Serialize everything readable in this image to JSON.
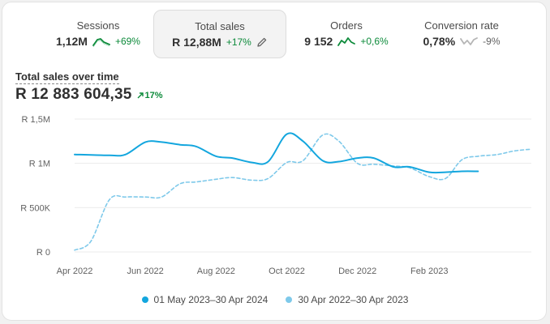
{
  "metrics": [
    {
      "label": "Sessions",
      "value": "1,12M",
      "change": "+69%",
      "trend": "up",
      "active": false
    },
    {
      "label": "Total sales",
      "value": "R 12,88M",
      "change": "+17%",
      "trend": "up",
      "active": true
    },
    {
      "label": "Orders",
      "value": "9 152",
      "change": "+0,6%",
      "trend": "up",
      "active": false
    },
    {
      "label": "Conversion rate",
      "value": "0,78%",
      "change": "-9%",
      "trend": "down",
      "active": false
    }
  ],
  "chart_title": "Total sales over time",
  "total_value": "R 12 883 604,35",
  "total_change": "17%",
  "colors": {
    "current": "#13a6de",
    "previous": "#7ec9ea",
    "up": "#0c8a3a",
    "down": "#9a9a9a"
  },
  "chart_data": {
    "type": "line",
    "title": "Total sales over time",
    "xlabel": "",
    "ylabel": "",
    "x_ticks": [
      "Apr 2022",
      "Jun 2022",
      "Aug 2022",
      "Oct 2022",
      "Dec 2022",
      "Feb 2023"
    ],
    "y_ticks": [
      "R 0",
      "R 500K",
      "R 1M",
      "R 1,5M"
    ],
    "ylim": [
      0,
      1500000
    ],
    "grid": true,
    "legend_position": "bottom",
    "series": [
      {
        "name": "01 May 2023–30 Apr 2024",
        "style": "solid",
        "x": [
          "2022-04-01",
          "2022-05-01",
          "2022-05-15",
          "2022-06-01",
          "2022-06-15",
          "2022-07-01",
          "2022-07-15",
          "2022-08-01",
          "2022-08-15",
          "2022-09-01",
          "2022-09-15",
          "2022-10-01",
          "2022-10-15",
          "2022-11-01",
          "2022-11-15",
          "2022-12-01",
          "2022-12-15",
          "2023-01-01",
          "2023-01-15",
          "2023-02-01",
          "2023-02-15",
          "2023-03-01",
          "2023-03-15"
        ],
        "values": [
          1100000,
          1090000,
          1100000,
          1240000,
          1240000,
          1210000,
          1190000,
          1080000,
          1060000,
          1010000,
          1020000,
          1330000,
          1250000,
          1030000,
          1020000,
          1060000,
          1060000,
          960000,
          960000,
          900000,
          900000,
          910000,
          910000
        ]
      },
      {
        "name": "30 Apr 2022–30 Apr 2023",
        "style": "dashed",
        "x": [
          "2022-04-01",
          "2022-04-15",
          "2022-05-01",
          "2022-05-15",
          "2022-06-01",
          "2022-06-15",
          "2022-07-01",
          "2022-07-15",
          "2022-08-01",
          "2022-08-15",
          "2022-09-01",
          "2022-09-15",
          "2022-10-01",
          "2022-10-15",
          "2022-11-01",
          "2022-11-15",
          "2022-12-01",
          "2022-12-15",
          "2023-01-01",
          "2023-01-15",
          "2023-02-01",
          "2023-02-15",
          "2023-03-01",
          "2023-03-15",
          "2023-04-01",
          "2023-04-15",
          "2023-04-30"
        ],
        "values": [
          20000,
          120000,
          590000,
          620000,
          620000,
          620000,
          770000,
          790000,
          820000,
          840000,
          810000,
          830000,
          1010000,
          1030000,
          1320000,
          1250000,
          1000000,
          990000,
          970000,
          950000,
          850000,
          830000,
          1040000,
          1080000,
          1100000,
          1140000,
          1160000
        ]
      }
    ]
  }
}
